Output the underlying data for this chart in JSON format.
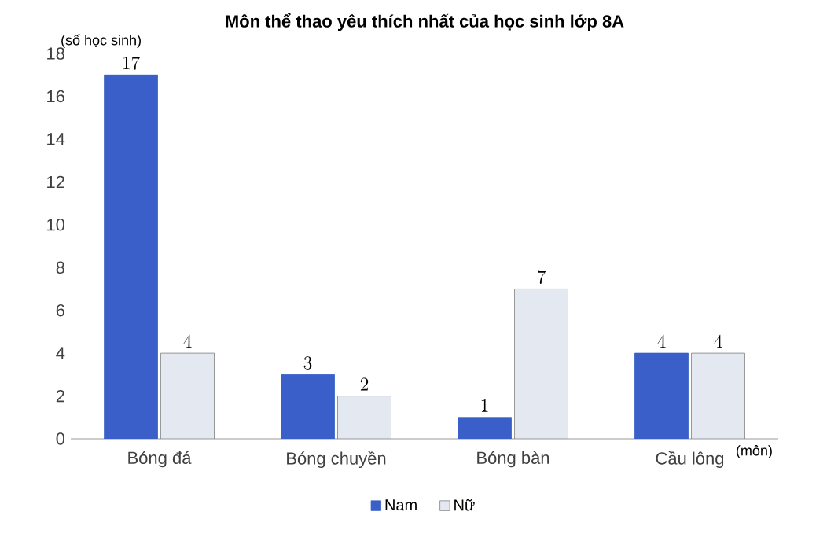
{
  "chart_data": {
    "type": "bar",
    "title": "Môn thể thao yêu thích nhất của học sinh lớp 8A",
    "xlabel": "(môn)",
    "ylabel": "(số học sinh)",
    "categories": [
      "Bóng đá",
      "Bóng chuyền",
      "Bóng bàn",
      "Cầu lông"
    ],
    "series": [
      {
        "name": "Nam",
        "color": "#3a5fc8",
        "values": [
          17,
          3,
          1,
          4
        ]
      },
      {
        "name": "Nữ",
        "color": "#e4e8f0",
        "values": [
          4,
          2,
          7,
          4
        ]
      }
    ],
    "ylim": [
      0,
      18
    ],
    "yticks": [
      0,
      2,
      4,
      6,
      8,
      10,
      12,
      14,
      16,
      18
    ],
    "data_labels": true,
    "grid": false,
    "legend": "bottom"
  }
}
